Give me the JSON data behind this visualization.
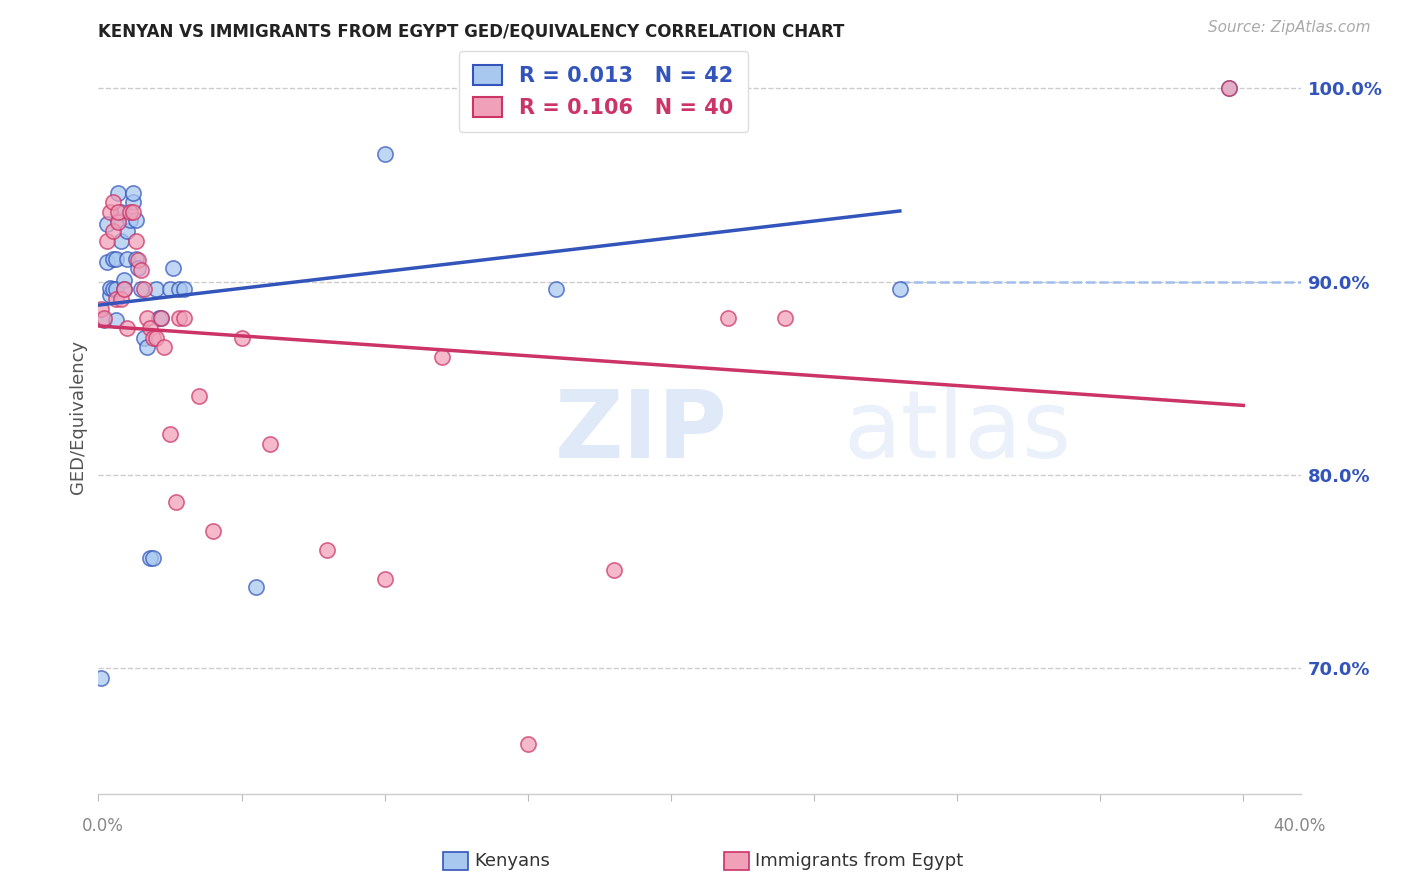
{
  "title": "KENYAN VS IMMIGRANTS FROM EGYPT GED/EQUIVALENCY CORRELATION CHART",
  "source": "Source: ZipAtlas.com",
  "ylabel": "GED/Equivalency",
  "xlim": [
    0.0,
    0.42
  ],
  "ylim": [
    0.635,
    1.025
  ],
  "yticks": [
    0.7,
    0.8,
    0.9,
    1.0
  ],
  "ytick_labels": [
    "70.0%",
    "80.0%",
    "90.0%",
    "100.0%"
  ],
  "blue_color": "#a8c8f0",
  "pink_color": "#f0a0b8",
  "line_blue": "#3355bb",
  "line_pink": "#cc3366",
  "dashed_color": "#99bbee",
  "R_blue": "0.013",
  "N_blue": "42",
  "R_pink": "0.106",
  "N_pink": "40",
  "legend_label_blue": "Kenyans",
  "legend_label_pink": "Immigrants from Egypt",
  "kenyan_x": [
    0.001,
    0.002,
    0.003,
    0.003,
    0.004,
    0.004,
    0.005,
    0.005,
    0.006,
    0.006,
    0.006,
    0.007,
    0.007,
    0.008,
    0.008,
    0.009,
    0.009,
    0.01,
    0.01,
    0.011,
    0.012,
    0.012,
    0.013,
    0.013,
    0.014,
    0.015,
    0.016,
    0.017,
    0.018,
    0.019,
    0.02,
    0.021,
    0.022,
    0.025,
    0.026,
    0.028,
    0.03,
    0.055,
    0.1,
    0.16,
    0.28,
    0.395
  ],
  "kenyan_y": [
    0.695,
    0.88,
    0.91,
    0.93,
    0.893,
    0.897,
    0.912,
    0.896,
    0.912,
    0.896,
    0.88,
    0.932,
    0.946,
    0.921,
    0.936,
    0.901,
    0.896,
    0.926,
    0.912,
    0.932,
    0.941,
    0.946,
    0.932,
    0.912,
    0.907,
    0.896,
    0.871,
    0.866,
    0.757,
    0.757,
    0.896,
    0.881,
    0.881,
    0.896,
    0.907,
    0.896,
    0.896,
    0.742,
    0.966,
    0.896,
    0.896,
    1.0
  ],
  "egypt_x": [
    0.001,
    0.002,
    0.003,
    0.004,
    0.005,
    0.005,
    0.006,
    0.007,
    0.007,
    0.008,
    0.009,
    0.01,
    0.011,
    0.012,
    0.013,
    0.014,
    0.015,
    0.016,
    0.017,
    0.018,
    0.019,
    0.02,
    0.022,
    0.023,
    0.025,
    0.027,
    0.028,
    0.03,
    0.035,
    0.04,
    0.05,
    0.06,
    0.08,
    0.1,
    0.12,
    0.15,
    0.18,
    0.22,
    0.24,
    0.395
  ],
  "egypt_y": [
    0.886,
    0.881,
    0.921,
    0.936,
    0.941,
    0.926,
    0.891,
    0.931,
    0.936,
    0.891,
    0.896,
    0.876,
    0.936,
    0.936,
    0.921,
    0.911,
    0.906,
    0.896,
    0.881,
    0.876,
    0.871,
    0.871,
    0.881,
    0.866,
    0.821,
    0.786,
    0.881,
    0.881,
    0.841,
    0.771,
    0.871,
    0.816,
    0.761,
    0.746,
    0.861,
    0.661,
    0.751,
    0.881,
    0.881,
    1.0
  ]
}
